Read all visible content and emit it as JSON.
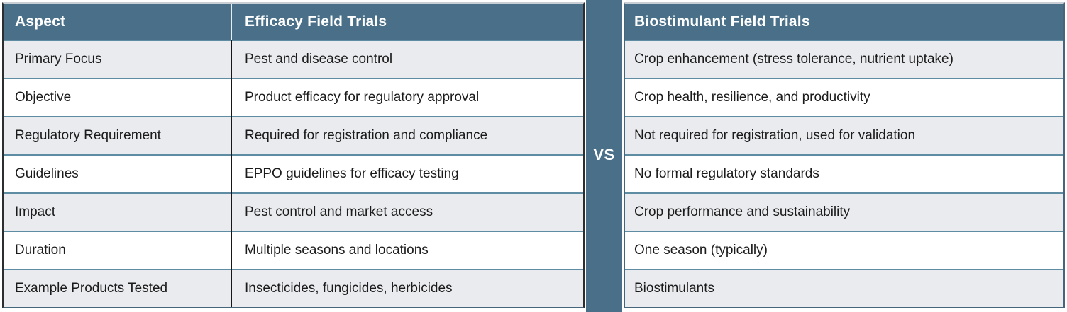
{
  "colors": {
    "header_bg": "#4A7089",
    "row_alt_bg": "#E9EBEE",
    "row_bg": "#FFFFFF",
    "row_border": "#5E8CA3",
    "column_divider": "#161616",
    "header_text": "#FFFFFF",
    "body_text": "#1B1B1B"
  },
  "vs_divider": {
    "label": "VS"
  },
  "left_table": {
    "headers": [
      "Aspect",
      "Efficacy Field Trials"
    ],
    "rows": [
      {
        "aspect": "Primary Focus",
        "value": "Pest and disease control"
      },
      {
        "aspect": "Objective",
        "value": "Product efficacy for regulatory approval"
      },
      {
        "aspect": "Regulatory Requirement",
        "value": "Required for registration and compliance"
      },
      {
        "aspect": "Guidelines",
        "value": "EPPO guidelines for efficacy testing"
      },
      {
        "aspect": "Impact",
        "value": "Pest control and market access"
      },
      {
        "aspect": "Duration",
        "value": "Multiple seasons and locations"
      },
      {
        "aspect": "Example Products Tested",
        "value": "Insecticides, fungicides, herbicides"
      }
    ]
  },
  "right_table": {
    "header": "Biostimulant Field Trials",
    "rows": [
      "Crop enhancement (stress tolerance, nutrient uptake)",
      "Crop health, resilience, and productivity",
      "Not required for registration, used for validation",
      "No formal regulatory standards",
      "Crop performance and sustainability",
      "One season (typically)",
      "Biostimulants"
    ]
  },
  "chart_data": {
    "type": "table",
    "title": "Efficacy Field Trials vs Biostimulant Field Trials",
    "columns": [
      "Aspect",
      "Efficacy Field Trials",
      "Biostimulant Field Trials"
    ],
    "rows": [
      [
        "Primary Focus",
        "Pest and disease control",
        "Crop enhancement (stress tolerance, nutrient uptake)"
      ],
      [
        "Objective",
        "Product efficacy for regulatory approval",
        "Crop health, resilience, and productivity"
      ],
      [
        "Regulatory Requirement",
        "Required for registration and compliance",
        "Not required for registration, used for validation"
      ],
      [
        "Guidelines",
        "EPPO guidelines for efficacy testing",
        "No formal regulatory standards"
      ],
      [
        "Impact",
        "Pest control and market access",
        "Crop performance and sustainability"
      ],
      [
        "Duration",
        "Multiple seasons and locations",
        "One season (typically)"
      ],
      [
        "Example Products Tested",
        "Insecticides, fungicides, herbicides",
        "Biostimulants"
      ]
    ],
    "annotations": [
      "VS"
    ],
    "layout": {
      "divider_between_tables": true,
      "alternating_row_shading": true
    }
  }
}
